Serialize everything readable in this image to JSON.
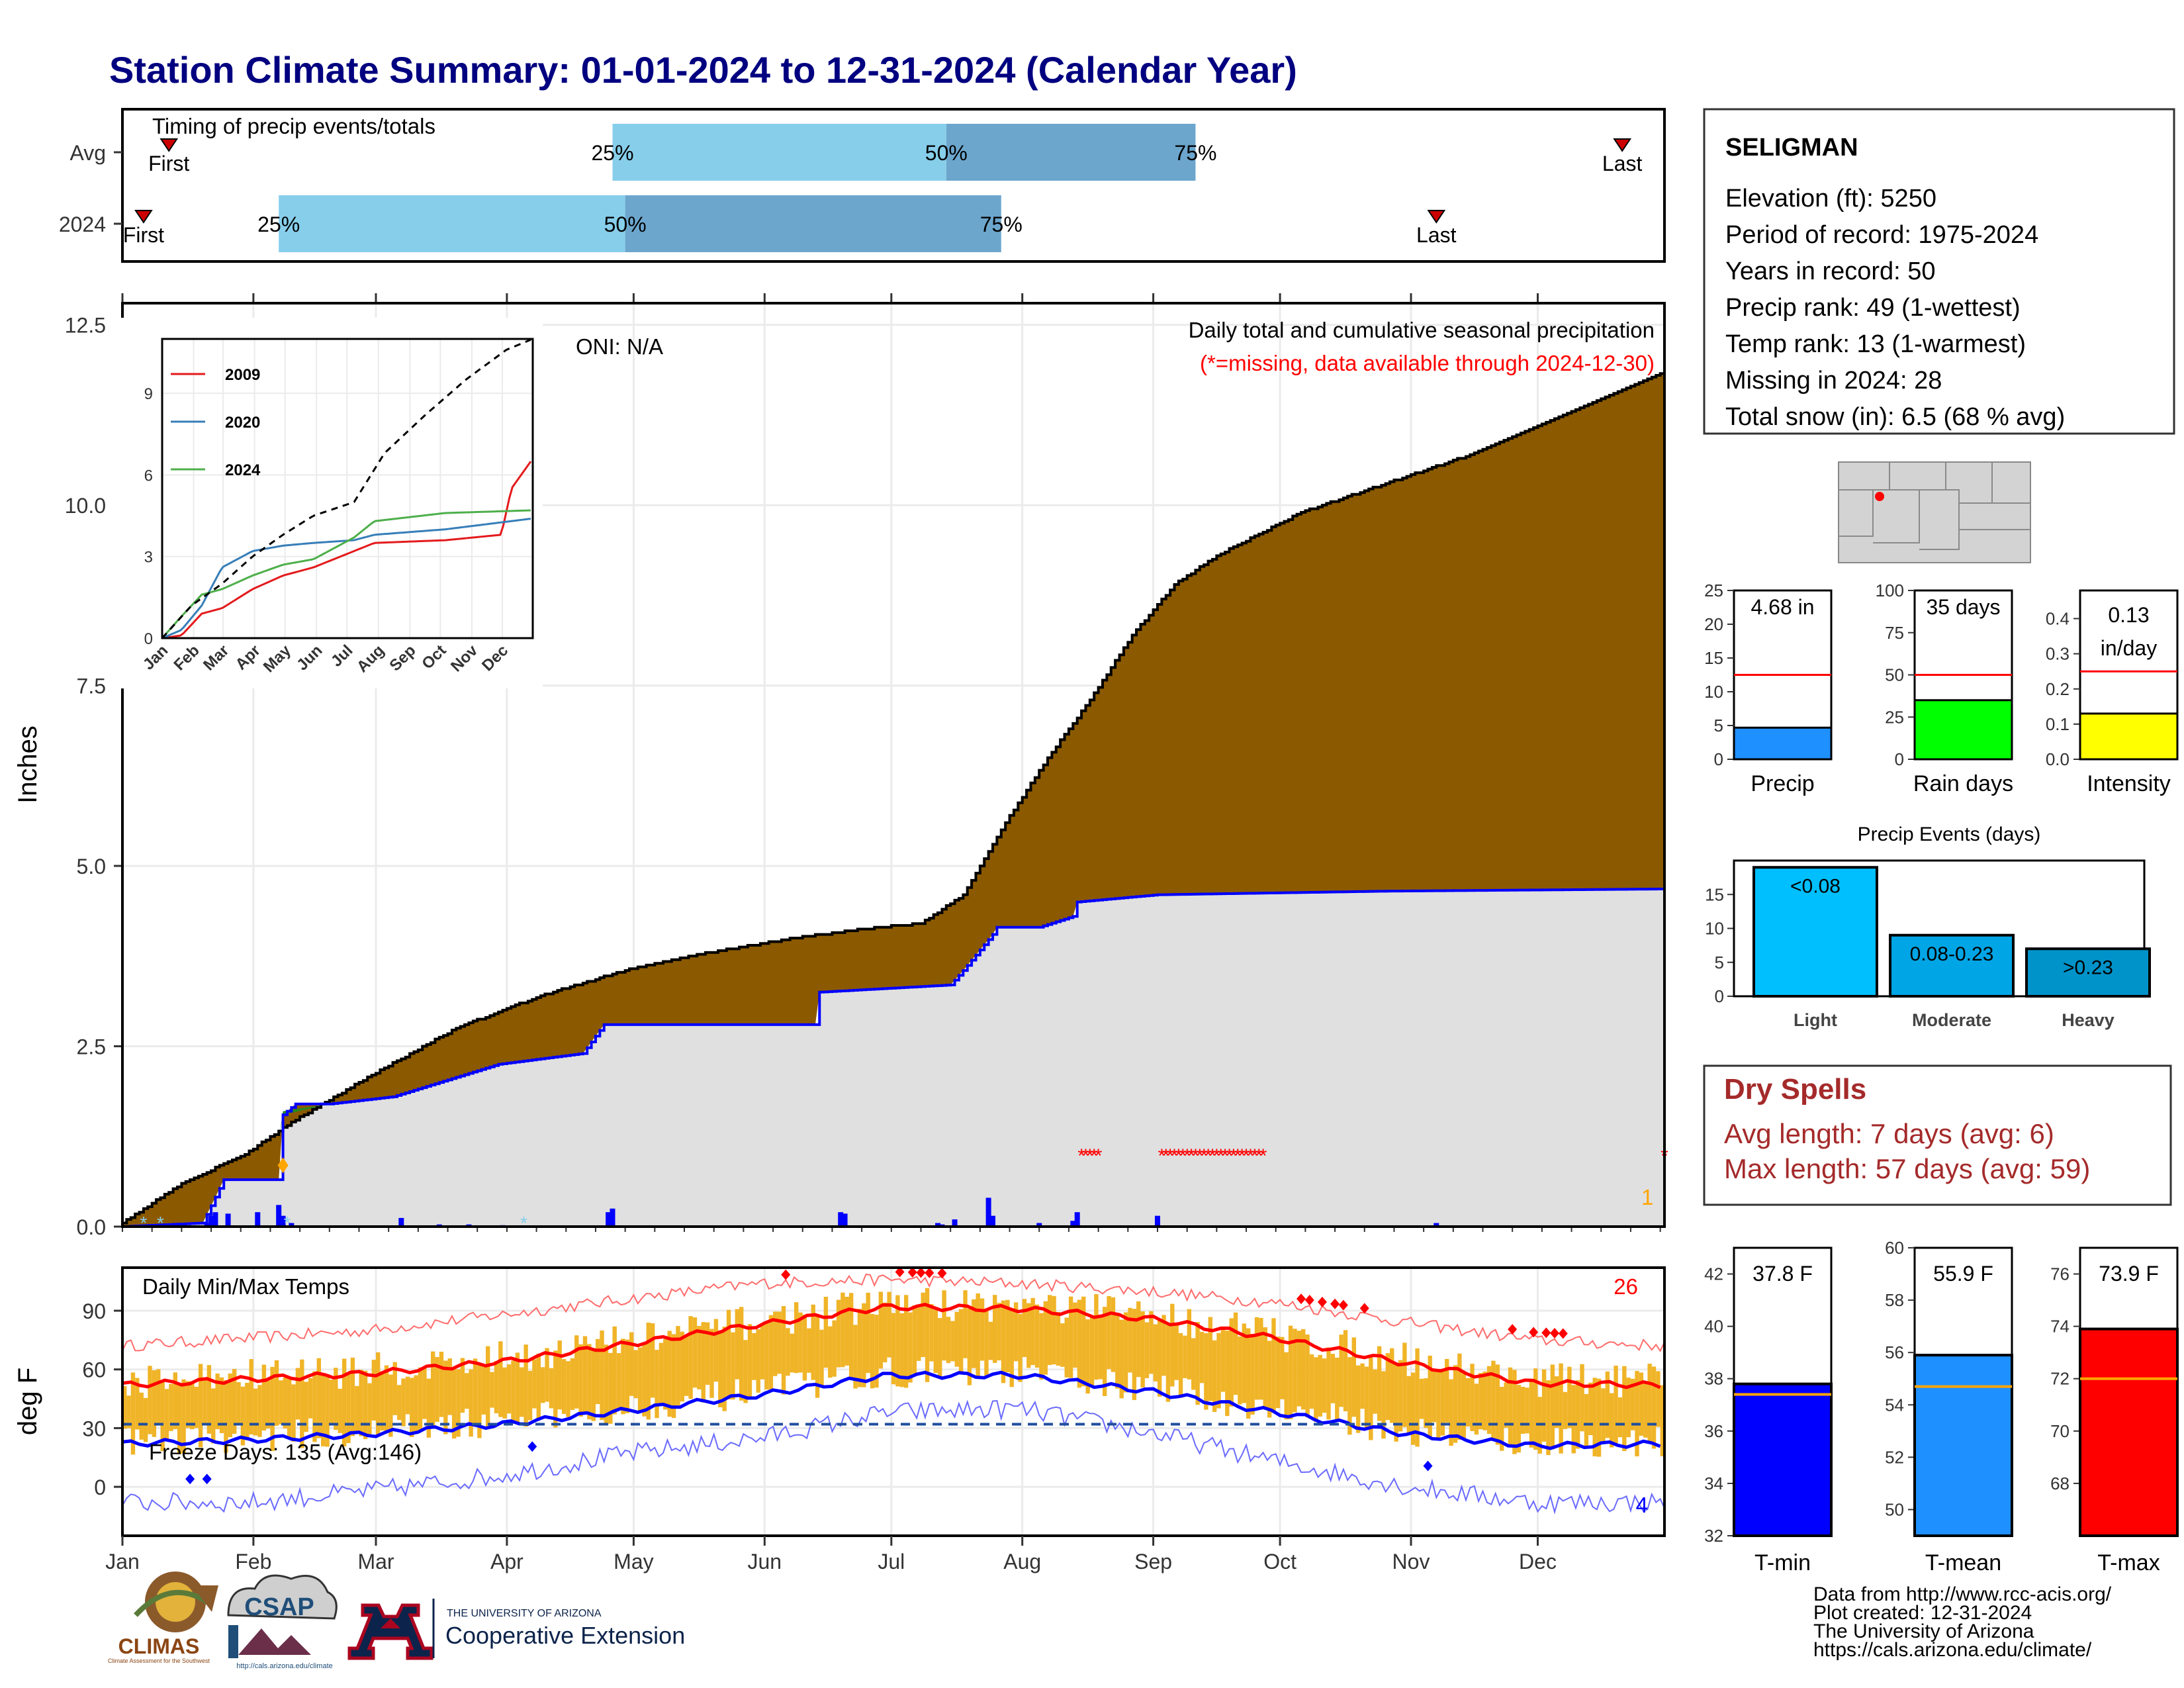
{
  "title": "Station Climate Summary: 01-01-2024 to 12-31-2024 (Calendar Year)",
  "timing": {
    "label": "Timing of precip events/totals",
    "rows": [
      {
        "name": "Avg",
        "first_label": "First",
        "last_label": "Last",
        "first_doy": 12,
        "last_doy": 356,
        "p25": 117,
        "p50": 196,
        "p75": 255,
        "p25_label": "25%",
        "p50_label": "50%",
        "p75_label": "75%"
      },
      {
        "name": "2024",
        "first_label": "First",
        "last_label": "Last",
        "first_doy": 6,
        "last_doy": 312,
        "p25": 38,
        "p50": 120,
        "p75": 209,
        "p25_label": "25%",
        "p50_label": "50%",
        "p75_label": "75%"
      }
    ]
  },
  "precip": {
    "header": "Daily total and cumulative seasonal precipitation",
    "missing_note": "(*=missing, data available through 2024-12-30)",
    "oni": "ONI: N/A",
    "ylabel": "Inches",
    "yticks": [
      "0.0",
      "2.5",
      "5.0",
      "7.5",
      "10.0",
      "12.5"
    ],
    "ylim": [
      0,
      12.8
    ],
    "missing_count_label": "1",
    "months": [
      "Jan",
      "Feb",
      "Mar",
      "Apr",
      "May",
      "Jun",
      "Jul",
      "Aug",
      "Sep",
      "Oct",
      "Nov",
      "Dec"
    ]
  },
  "inset": {
    "yticks": [
      "0",
      "3",
      "6",
      "9"
    ],
    "ylim": [
      0,
      11
    ],
    "months": [
      "Jan",
      "Feb",
      "Mar",
      "Apr",
      "May",
      "Jun",
      "Jul",
      "Aug",
      "Sep",
      "Oct",
      "Nov",
      "Dec"
    ],
    "legend": [
      {
        "name": "2009",
        "color": "#e41a1c"
      },
      {
        "name": "2020",
        "color": "#377eb8"
      },
      {
        "name": "2024",
        "color": "#4daf4a"
      }
    ]
  },
  "temps": {
    "header": "Daily Min/Max Temps",
    "ylabel": "deg F",
    "yticks": [
      "0",
      "30",
      "60",
      "90"
    ],
    "ylim": [
      -25,
      112
    ],
    "freeze_label": "Freeze Days: 135 (Avg:146)",
    "record_high_count": "26",
    "record_low_count": "4",
    "freeze_line": 32
  },
  "station": {
    "name": "SELIGMAN",
    "lines": [
      "Elevation (ft): 5250",
      "Period of record: 1975-2024",
      "Years in record: 50",
      "Precip rank: 49 (1-wettest)",
      "Temp rank: 13 (1-warmest)",
      "Missing in 2024: 28",
      "Total snow (in): 6.5 (68 % avg)"
    ]
  },
  "mini_bars": [
    {
      "label": "Precip",
      "value_text": "4.68 in",
      "value": 4.68,
      "avg": 12.5,
      "ymax": 25,
      "yticks": [
        "0",
        "5",
        "10",
        "15",
        "20",
        "25"
      ],
      "color": "#1e90ff"
    },
    {
      "label": "Rain days",
      "value_text": "35 days",
      "value": 35,
      "avg": 50,
      "ymax": 100,
      "yticks": [
        "0",
        "25",
        "50",
        "75",
        "100"
      ],
      "color": "#00ff00"
    },
    {
      "label": "Intensity",
      "value_text": "0.13",
      "value_text2": "in/day",
      "value": 0.13,
      "avg": 0.25,
      "ymax": 0.48,
      "yticks": [
        "0.0",
        "0.1",
        "0.2",
        "0.3",
        "0.4"
      ],
      "color": "#ffff00"
    }
  ],
  "events": {
    "title": "Precip Events (days)",
    "yticks": [
      "0",
      "5",
      "10",
      "15"
    ],
    "bars": [
      {
        "label": "Light",
        "inner": "<0.08",
        "value": 19,
        "color": "#00bfff"
      },
      {
        "label": "Moderate",
        "inner": "0.08-0.23",
        "value": 9,
        "color": "#00a5e6"
      },
      {
        "label": "Heavy",
        "inner": ">0.23",
        "value": 7,
        "color": "#0093c9"
      }
    ]
  },
  "dry_spells": {
    "title": "Dry Spells",
    "avg": "Avg length: 7 days (avg: 6)",
    "max": "Max length: 57 days (avg: 59)"
  },
  "temp_bars": [
    {
      "label": "T-min",
      "value_text": "37.8 F",
      "value": 37.8,
      "avg": 37.4,
      "ymin": 32,
      "ymax": 43,
      "yticks": [
        "32",
        "34",
        "36",
        "38",
        "40",
        "42"
      ],
      "color": "#0000ff"
    },
    {
      "label": "T-mean",
      "value_text": "55.9 F",
      "value": 55.9,
      "avg": 54.7,
      "ymin": 49,
      "ymax": 60,
      "yticks": [
        "50",
        "52",
        "54",
        "56",
        "58",
        "60"
      ],
      "color": "#1e90ff"
    },
    {
      "label": "T-max",
      "value_text": "73.9 F",
      "value": 73.9,
      "avg": 72,
      "ymin": 66,
      "ymax": 77,
      "yticks": [
        "68",
        "70",
        "72",
        "74",
        "76"
      ],
      "color": "#ff0000"
    }
  ],
  "footer": {
    "lines": [
      "Data from http://www.rcc-acis.org/",
      "Plot created: 12-31-2024",
      "The University of Arizona",
      "https://cals.arizona.edu/climate/"
    ],
    "climas": "CLIMAS",
    "climas_sub": "Climate Assessment for the Southwest",
    "csap": "CSAP",
    "csap_url": "http://cals.arizona.edu/climate",
    "ua_small": "THE UNIVERSITY OF ARIZONA",
    "ua_big": "Cooperative Extension"
  },
  "chart_data": [
    {
      "type": "area",
      "title": "Daily total and cumulative seasonal precipitation",
      "ylabel": "Inches",
      "ylim": [
        0,
        12.8
      ],
      "series": [
        {
          "name": "cumulative avg",
          "x": [
            1,
            15,
            30,
            41,
            60,
            80,
            100,
            120,
            140,
            160,
            180,
            190,
            200,
            210,
            220,
            230,
            240,
            250,
            260,
            270,
            280,
            300,
            320,
            340,
            366
          ],
          "y": [
            0.05,
            0.6,
            1.0,
            1.45,
            2.1,
            2.75,
            3.2,
            3.55,
            3.8,
            4.0,
            4.15,
            4.2,
            4.6,
            5.6,
            6.5,
            7.3,
            8.2,
            8.9,
            9.3,
            9.6,
            9.9,
            10.3,
            10.7,
            11.2,
            11.85
          ]
        },
        {
          "name": "cumulative 2024",
          "x": [
            1,
            20,
            25,
            38,
            39,
            42,
            50,
            65,
            90,
            110,
            115,
            150,
            165,
            166,
            197,
            200,
            207,
            208,
            218,
            226,
            227,
            246,
            300,
            366
          ],
          "y": [
            0,
            0.05,
            0.65,
            0.65,
            1.55,
            1.7,
            1.7,
            1.8,
            2.25,
            2.4,
            2.8,
            2.8,
            2.8,
            3.25,
            3.35,
            3.55,
            4.05,
            4.15,
            4.15,
            4.3,
            4.5,
            4.6,
            4.65,
            4.68
          ]
        },
        {
          "name": "daily 2024",
          "x": [
            21,
            22,
            23,
            26,
            33,
            38,
            39,
            41,
            67,
            76,
            83,
            91,
            116,
            117,
            171,
            172,
            194,
            195,
            198,
            206,
            207,
            218,
            226,
            227,
            246,
            312
          ],
          "y": [
            0.05,
            0.15,
            0.2,
            0.18,
            0.2,
            0.3,
            0.15,
            0.05,
            0.12,
            0.03,
            0.03,
            0.02,
            0.2,
            0.25,
            0.2,
            0.18,
            0.05,
            0.03,
            0.1,
            0.4,
            0.15,
            0.05,
            0.08,
            0.2,
            0.15,
            0.05
          ]
        }
      ]
    },
    {
      "type": "line",
      "title": "",
      "ylim": [
        0,
        11
      ],
      "series": [
        {
          "name": "2009",
          "x": [
            1,
            20,
            40,
            60,
            90,
            120,
            150,
            190,
            210,
            280,
            335,
            345,
            366
          ],
          "y": [
            0,
            0.1,
            0.9,
            1.1,
            1.8,
            2.3,
            2.6,
            3.2,
            3.5,
            3.6,
            3.8,
            5.5,
            6.6
          ]
        },
        {
          "name": "2020",
          "x": [
            1,
            20,
            40,
            60,
            90,
            120,
            150,
            190,
            210,
            280,
            366
          ],
          "y": [
            0,
            0.3,
            1.2,
            2.6,
            3.2,
            3.4,
            3.5,
            3.6,
            3.8,
            4.0,
            4.4
          ]
        },
        {
          "name": "2024",
          "x": [
            1,
            20,
            40,
            60,
            90,
            120,
            150,
            190,
            210,
            280,
            366
          ],
          "y": [
            0,
            0.8,
            1.6,
            1.8,
            2.3,
            2.7,
            2.9,
            3.7,
            4.3,
            4.6,
            4.7
          ]
        },
        {
          "name": "",
          "x": [
            1,
            30,
            60,
            90,
            120,
            150,
            190,
            220,
            260,
            300,
            340,
            366
          ],
          "y": [
            0,
            1.2,
            2.0,
            3.0,
            3.8,
            4.5,
            5.0,
            6.8,
            8.2,
            9.5,
            10.6,
            11.0
          ]
        }
      ]
    },
    {
      "type": "line",
      "title": "Daily Min/Max Temps",
      "ylabel": "deg F",
      "ylim": [
        -25,
        112
      ],
      "series": [
        {
          "name": "avg max",
          "x": [
            1,
            31,
            60,
            91,
            121,
            152,
            182,
            213,
            244,
            274,
            305,
            335,
            366
          ],
          "y": [
            52,
            55,
            58,
            64,
            73,
            83,
            92,
            91,
            86,
            76,
            63,
            53,
            52
          ]
        },
        {
          "name": "avg min",
          "x": [
            1,
            31,
            60,
            91,
            121,
            152,
            182,
            213,
            244,
            274,
            305,
            335,
            366
          ],
          "y": [
            22,
            24,
            27,
            32,
            39,
            47,
            57,
            57,
            49,
            38,
            27,
            21,
            22
          ]
        },
        {
          "name": "record max",
          "x": [
            1,
            31,
            60,
            91,
            121,
            152,
            182,
            213,
            244,
            274,
            305,
            335,
            366
          ],
          "y": [
            72,
            76,
            80,
            88,
            96,
            104,
            106,
            104,
            100,
            94,
            84,
            75,
            72
          ]
        },
        {
          "name": "record min",
          "x": [
            1,
            31,
            60,
            91,
            121,
            152,
            182,
            213,
            244,
            274,
            305,
            335,
            366
          ],
          "y": [
            -8,
            -8,
            -2,
            6,
            17,
            25,
            38,
            40,
            28,
            13,
            0,
            -8,
            -8
          ]
        }
      ]
    },
    {
      "type": "bar",
      "categories": [
        "Precip"
      ],
      "values": [
        4.68
      ],
      "ylim": [
        0,
        25
      ]
    },
    {
      "type": "bar",
      "categories": [
        "Rain days"
      ],
      "values": [
        35
      ],
      "ylim": [
        0,
        100
      ]
    },
    {
      "type": "bar",
      "categories": [
        "Intensity"
      ],
      "values": [
        0.13
      ],
      "ylim": [
        0,
        0.48
      ]
    },
    {
      "type": "bar",
      "title": "Precip Events (days)",
      "categories": [
        "Light",
        "Moderate",
        "Heavy"
      ],
      "values": [
        19,
        9,
        7
      ],
      "ylim": [
        0,
        20
      ]
    },
    {
      "type": "bar",
      "categories": [
        "T-min"
      ],
      "values": [
        37.8
      ],
      "ylim": [
        32,
        43
      ]
    },
    {
      "type": "bar",
      "categories": [
        "T-mean"
      ],
      "values": [
        55.9
      ],
      "ylim": [
        49,
        60
      ]
    },
    {
      "type": "bar",
      "categories": [
        "T-max"
      ],
      "values": [
        73.9
      ],
      "ylim": [
        66,
        77
      ]
    }
  ]
}
